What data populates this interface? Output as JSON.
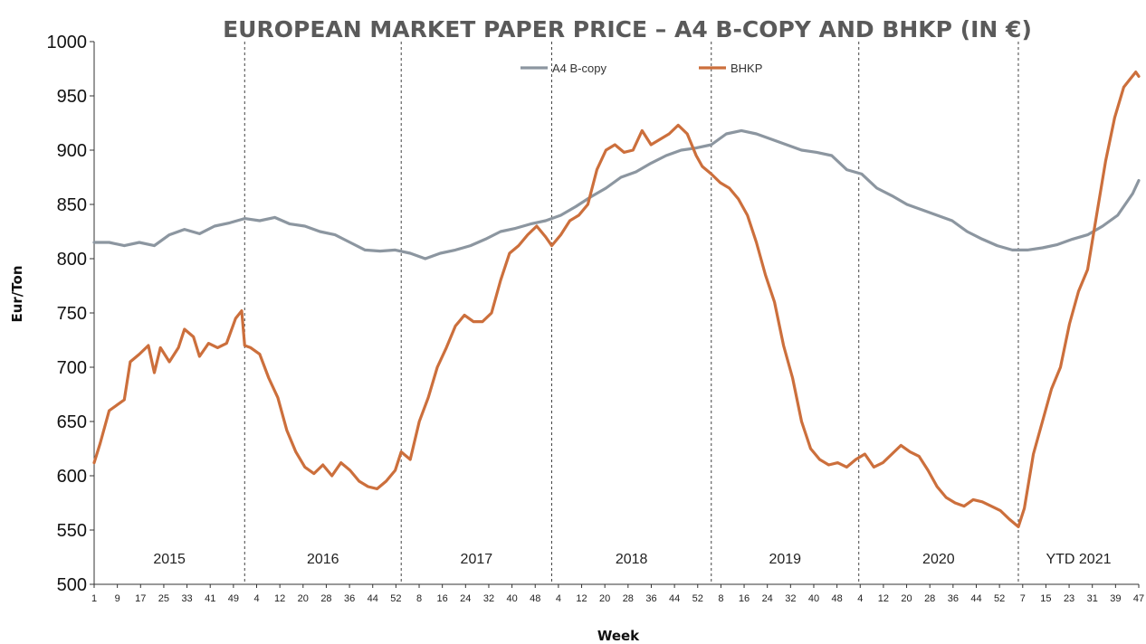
{
  "chart_data": {
    "type": "line",
    "title": "EUROPEAN MARKET PAPER PRICE – A4 B-COPY AND BHKP (IN €)",
    "xlabel": "Week",
    "ylabel": "Eur/Ton",
    "ylim": [
      500,
      1000
    ],
    "yticks": [
      500,
      550,
      600,
      650,
      700,
      750,
      800,
      850,
      900,
      950,
      1000
    ],
    "xtick_labels": [
      "1",
      "9",
      "17",
      "25",
      "33",
      "41",
      "49",
      "4",
      "12",
      "20",
      "28",
      "36",
      "44",
      "52",
      "8",
      "16",
      "24",
      "32",
      "40",
      "48",
      "4",
      "12",
      "20",
      "28",
      "36",
      "44",
      "52",
      "8",
      "16",
      "24",
      "32",
      "40",
      "48",
      "4",
      "12",
      "20",
      "28",
      "36",
      "44",
      "52",
      "7",
      "15",
      "23",
      "31",
      "39",
      "47"
    ],
    "grid": false,
    "legend_position": "top-center",
    "year_sections": [
      {
        "label": "2015",
        "start": 0,
        "end": 50
      },
      {
        "label": "2016",
        "start": 50,
        "end": 102
      },
      {
        "label": "2017",
        "start": 102,
        "end": 152
      },
      {
        "label": "2018",
        "start": 152,
        "end": 205
      },
      {
        "label": "2019",
        "start": 205,
        "end": 254
      },
      {
        "label": "2020",
        "start": 254,
        "end": 307
      },
      {
        "label": "YTD 2021",
        "start": 307,
        "end": 347
      }
    ],
    "series": [
      {
        "name": "A4 B-copy",
        "color": "#8c96a0",
        "points": [
          [
            0,
            815
          ],
          [
            5,
            815
          ],
          [
            10,
            812
          ],
          [
            15,
            815
          ],
          [
            20,
            812
          ],
          [
            25,
            822
          ],
          [
            30,
            827
          ],
          [
            35,
            823
          ],
          [
            40,
            830
          ],
          [
            45,
            833
          ],
          [
            50,
            837
          ],
          [
            55,
            835
          ],
          [
            60,
            838
          ],
          [
            65,
            832
          ],
          [
            70,
            830
          ],
          [
            75,
            825
          ],
          [
            80,
            822
          ],
          [
            85,
            815
          ],
          [
            90,
            808
          ],
          [
            95,
            807
          ],
          [
            100,
            808
          ],
          [
            105,
            805
          ],
          [
            110,
            800
          ],
          [
            115,
            805
          ],
          [
            120,
            808
          ],
          [
            125,
            812
          ],
          [
            130,
            818
          ],
          [
            135,
            825
          ],
          [
            140,
            828
          ],
          [
            145,
            832
          ],
          [
            150,
            835
          ],
          [
            155,
            840
          ],
          [
            160,
            848
          ],
          [
            165,
            857
          ],
          [
            170,
            865
          ],
          [
            175,
            875
          ],
          [
            180,
            880
          ],
          [
            185,
            888
          ],
          [
            190,
            895
          ],
          [
            195,
            900
          ],
          [
            200,
            902
          ],
          [
            205,
            905
          ],
          [
            210,
            915
          ],
          [
            215,
            918
          ],
          [
            220,
            915
          ],
          [
            225,
            910
          ],
          [
            230,
            905
          ],
          [
            235,
            900
          ],
          [
            240,
            898
          ],
          [
            245,
            895
          ],
          [
            250,
            882
          ],
          [
            255,
            878
          ],
          [
            260,
            865
          ],
          [
            265,
            858
          ],
          [
            270,
            850
          ],
          [
            275,
            845
          ],
          [
            280,
            840
          ],
          [
            285,
            835
          ],
          [
            290,
            825
          ],
          [
            295,
            818
          ],
          [
            300,
            812
          ],
          [
            305,
            808
          ],
          [
            310,
            808
          ],
          [
            315,
            810
          ],
          [
            320,
            813
          ],
          [
            325,
            818
          ],
          [
            330,
            822
          ],
          [
            335,
            830
          ],
          [
            340,
            840
          ],
          [
            345,
            860
          ],
          [
            347,
            872
          ]
        ]
      },
      {
        "name": "BHKP",
        "color": "#cc6f3c",
        "points": [
          [
            0,
            612
          ],
          [
            2,
            630
          ],
          [
            5,
            660
          ],
          [
            10,
            670
          ],
          [
            12,
            705
          ],
          [
            15,
            712
          ],
          [
            18,
            720
          ],
          [
            20,
            695
          ],
          [
            22,
            718
          ],
          [
            25,
            705
          ],
          [
            28,
            718
          ],
          [
            30,
            735
          ],
          [
            33,
            728
          ],
          [
            35,
            710
          ],
          [
            38,
            722
          ],
          [
            41,
            718
          ],
          [
            44,
            722
          ],
          [
            47,
            745
          ],
          [
            49,
            752
          ],
          [
            50,
            720
          ],
          [
            52,
            718
          ],
          [
            55,
            712
          ],
          [
            58,
            690
          ],
          [
            61,
            672
          ],
          [
            64,
            642
          ],
          [
            67,
            622
          ],
          [
            70,
            608
          ],
          [
            73,
            602
          ],
          [
            76,
            610
          ],
          [
            79,
            600
          ],
          [
            82,
            612
          ],
          [
            85,
            605
          ],
          [
            88,
            595
          ],
          [
            91,
            590
          ],
          [
            94,
            588
          ],
          [
            97,
            595
          ],
          [
            100,
            605
          ],
          [
            102,
            622
          ],
          [
            105,
            615
          ],
          [
            108,
            650
          ],
          [
            111,
            672
          ],
          [
            114,
            700
          ],
          [
            117,
            718
          ],
          [
            120,
            738
          ],
          [
            123,
            748
          ],
          [
            126,
            742
          ],
          [
            129,
            742
          ],
          [
            132,
            750
          ],
          [
            135,
            780
          ],
          [
            138,
            805
          ],
          [
            141,
            812
          ],
          [
            144,
            822
          ],
          [
            147,
            830
          ],
          [
            150,
            820
          ],
          [
            152,
            812
          ],
          [
            155,
            822
          ],
          [
            158,
            835
          ],
          [
            161,
            840
          ],
          [
            164,
            850
          ],
          [
            167,
            882
          ],
          [
            170,
            900
          ],
          [
            173,
            905
          ],
          [
            176,
            898
          ],
          [
            179,
            900
          ],
          [
            182,
            918
          ],
          [
            185,
            905
          ],
          [
            188,
            910
          ],
          [
            191,
            915
          ],
          [
            194,
            923
          ],
          [
            197,
            915
          ],
          [
            200,
            895
          ],
          [
            202,
            885
          ],
          [
            205,
            878
          ],
          [
            208,
            870
          ],
          [
            211,
            865
          ],
          [
            214,
            855
          ],
          [
            217,
            840
          ],
          [
            220,
            815
          ],
          [
            223,
            785
          ],
          [
            226,
            760
          ],
          [
            229,
            720
          ],
          [
            232,
            690
          ],
          [
            235,
            650
          ],
          [
            238,
            625
          ],
          [
            241,
            615
          ],
          [
            244,
            610
          ],
          [
            247,
            612
          ],
          [
            250,
            608
          ],
          [
            253,
            615
          ],
          [
            256,
            620
          ],
          [
            259,
            608
          ],
          [
            262,
            612
          ],
          [
            265,
            620
          ],
          [
            268,
            628
          ],
          [
            271,
            622
          ],
          [
            274,
            618
          ],
          [
            277,
            605
          ],
          [
            280,
            590
          ],
          [
            283,
            580
          ],
          [
            286,
            575
          ],
          [
            289,
            572
          ],
          [
            292,
            578
          ],
          [
            295,
            576
          ],
          [
            298,
            572
          ],
          [
            301,
            568
          ],
          [
            304,
            560
          ],
          [
            307,
            553
          ],
          [
            309,
            570
          ],
          [
            312,
            620
          ],
          [
            315,
            650
          ],
          [
            318,
            680
          ],
          [
            321,
            700
          ],
          [
            324,
            740
          ],
          [
            327,
            770
          ],
          [
            330,
            790
          ],
          [
            333,
            840
          ],
          [
            336,
            890
          ],
          [
            339,
            930
          ],
          [
            342,
            958
          ],
          [
            344,
            965
          ],
          [
            346,
            972
          ],
          [
            347,
            968
          ]
        ]
      }
    ]
  }
}
